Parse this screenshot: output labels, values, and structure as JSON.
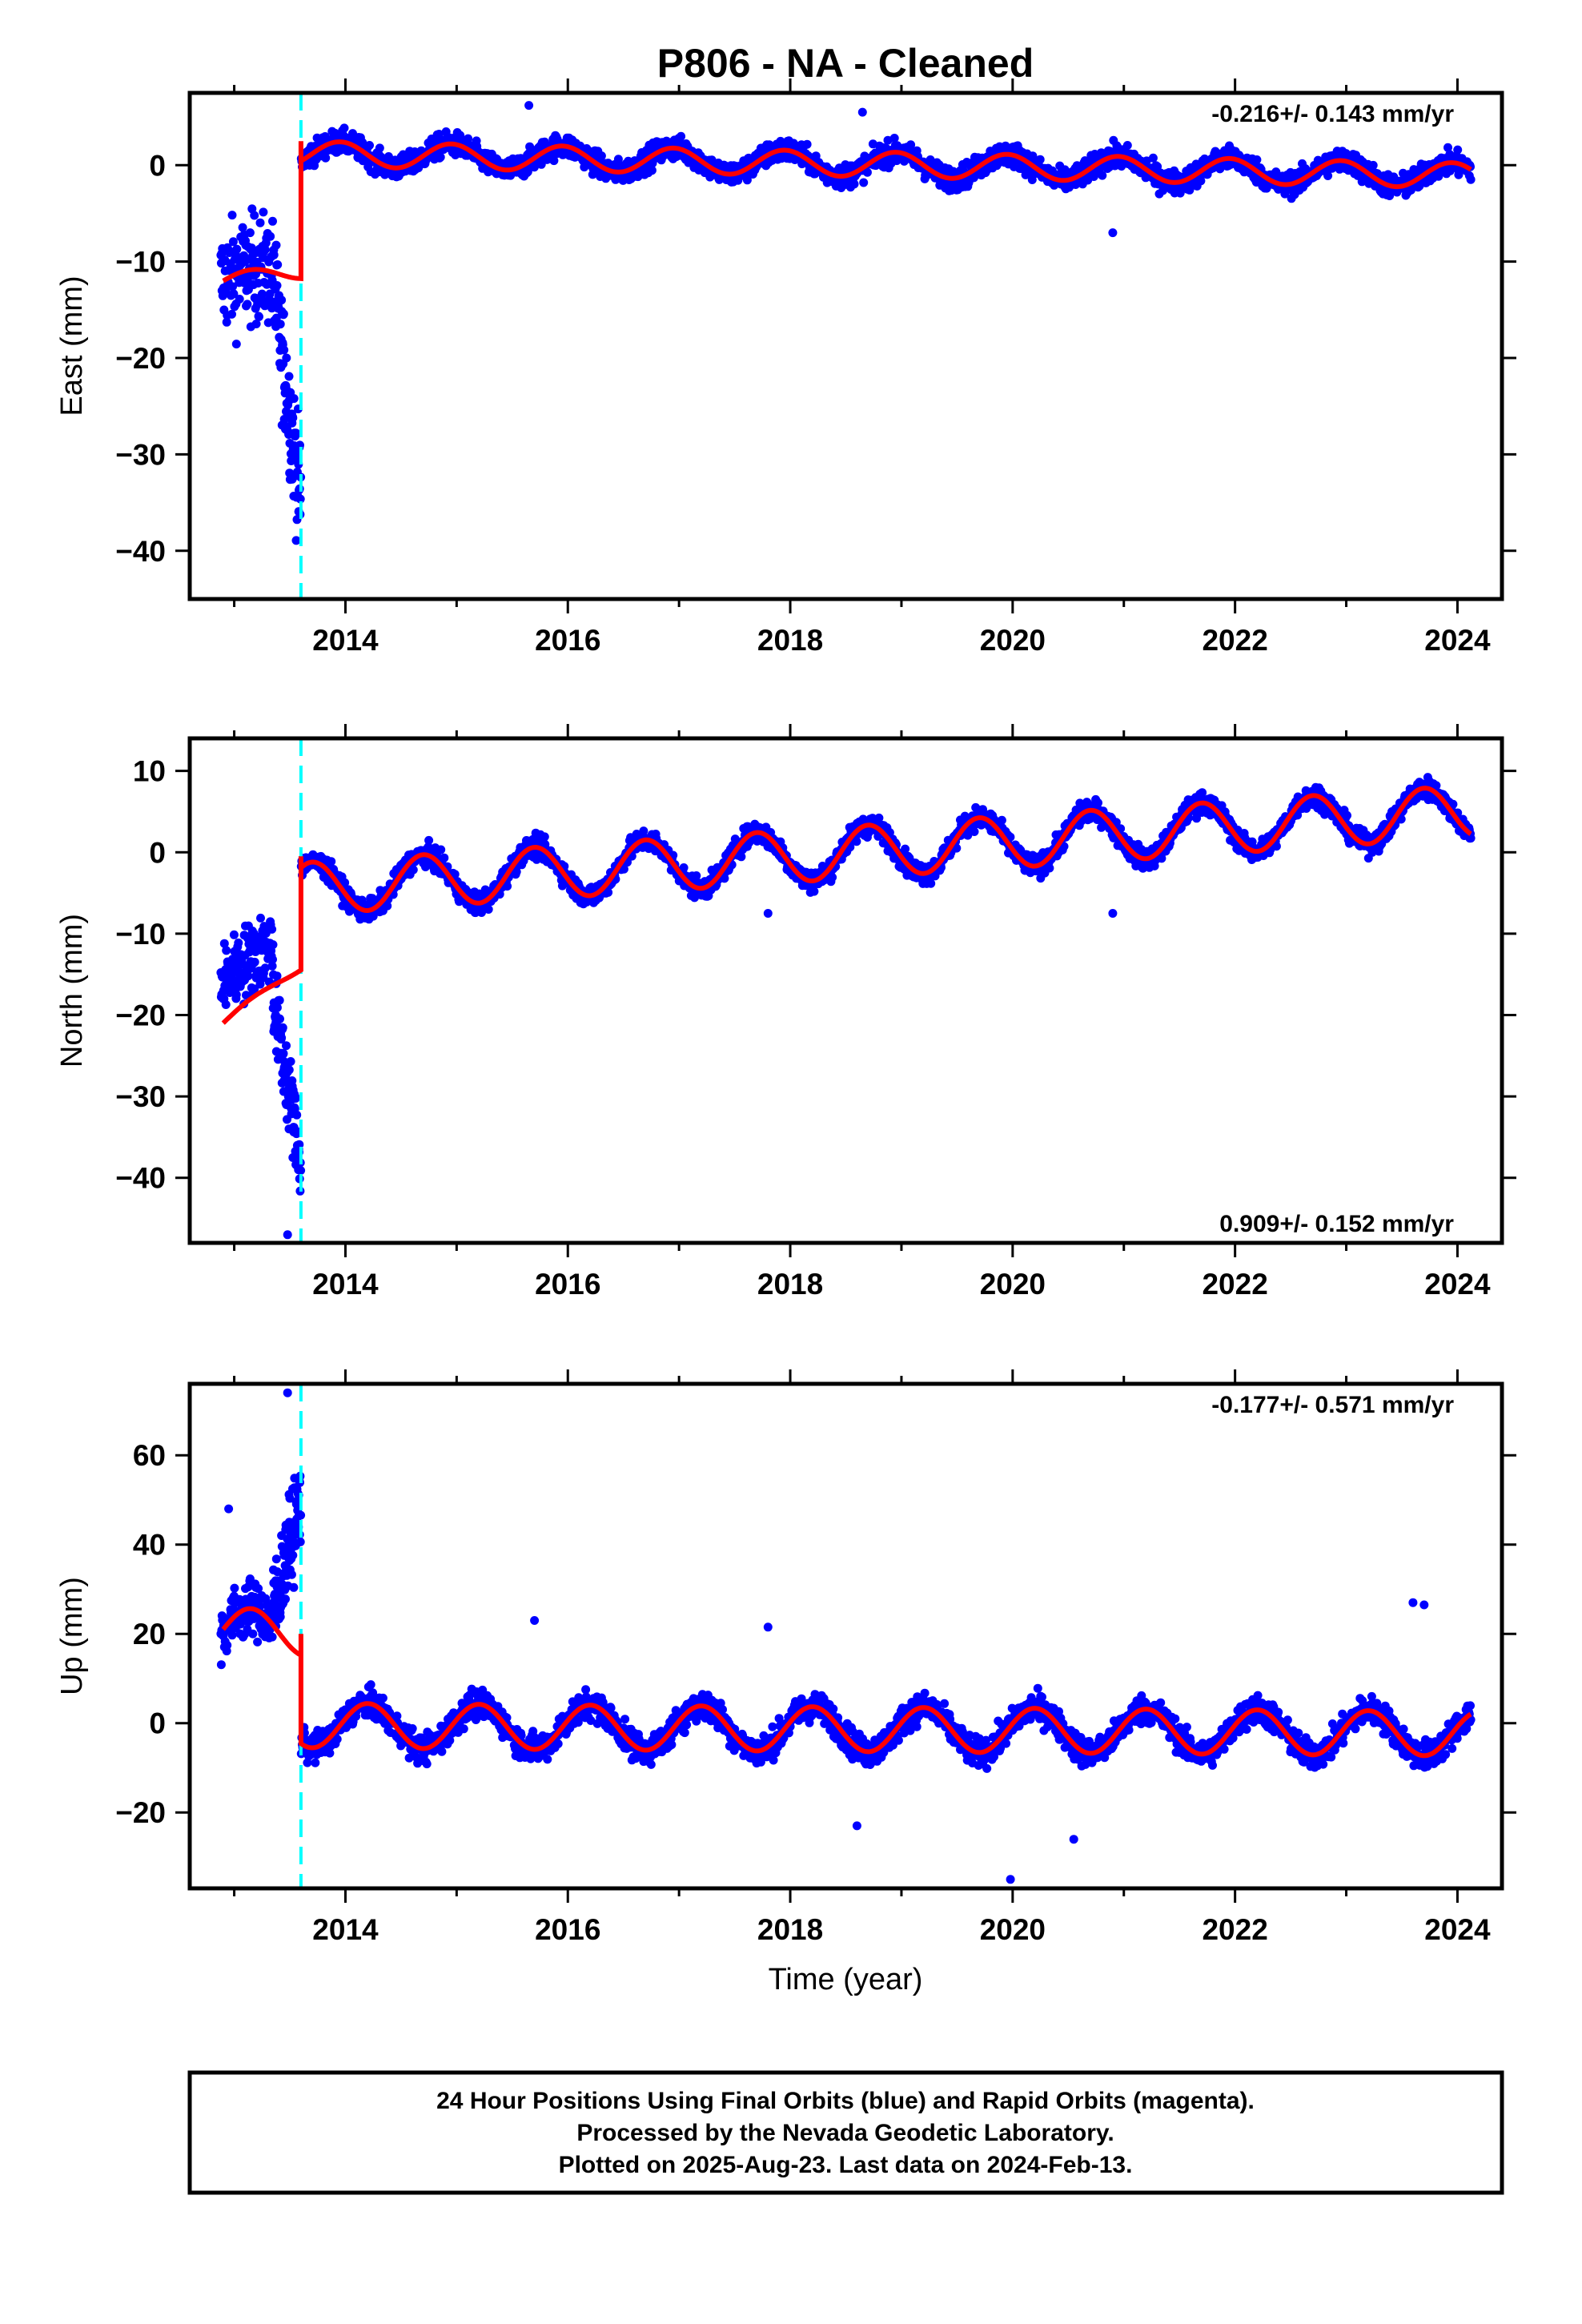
{
  "page": {
    "title": "P806  - NA - Cleaned",
    "xlabel": "Time (year)",
    "footer": [
      "24 Hour Positions Using Final Orbits (blue) and Rapid Orbits (magenta).",
      "Processed by the Nevada Geodetic Laboratory.",
      "Plotted on 2025-Aug-23. Last data on 2024-Feb-13."
    ]
  },
  "colors": {
    "points": "#0000ff",
    "model": "#ff0000",
    "offset_line": "#00ffff",
    "frame": "#000000"
  },
  "chart_data": [
    {
      "type": "scatter",
      "component": "east",
      "ylabel": "East (mm)",
      "rate_text": "-0.216+/- 0.143 mm/yr",
      "rate_position": "top-right",
      "xlim": [
        2012.6,
        2024.4
      ],
      "ylim": [
        -45,
        7.5
      ],
      "xticks": [
        2014,
        2016,
        2018,
        2020,
        2022,
        2024
      ],
      "yticks": [
        0,
        -10,
        -20,
        -30,
        -40
      ],
      "offset_epoch": 2013.6,
      "model": {
        "pre": {
          "start": 2012.9,
          "end": 2013.6,
          "value_start": -12.0,
          "value_end": -11.0,
          "annual_amplitude": 0.8
        },
        "post": {
          "start": 2013.6,
          "end": 2024.12,
          "value_start": 1.2,
          "trend": -0.216,
          "annual_amplitude": 1.3,
          "phase": 0.3
        },
        "step_top": 2.5
      },
      "points": {
        "pre": {
          "start": 2012.88,
          "end": 2013.35,
          "spread": 5.5,
          "offset": 0
        },
        "outlier_tail": {
          "start": 2013.35,
          "end": 2013.6,
          "from": -12,
          "to": -35,
          "spread": 6
        },
        "post": {
          "spread": 1.2
        },
        "outliers": [
          [
            2020.9,
            -7
          ],
          [
            2015.65,
            6.2
          ],
          [
            2018.65,
            5.5
          ]
        ]
      }
    },
    {
      "type": "scatter",
      "component": "north",
      "ylabel": "North (mm)",
      "rate_text": "0.909+/- 0.152 mm/yr",
      "rate_position": "bottom-right",
      "xlim": [
        2012.6,
        2024.4
      ],
      "ylim": [
        -48,
        14
      ],
      "xticks": [
        2014,
        2016,
        2018,
        2020,
        2022,
        2024
      ],
      "yticks": [
        10,
        0,
        -10,
        -20,
        -30,
        -40
      ],
      "offset_epoch": 2013.6,
      "model": {
        "pre": {
          "start": 2012.9,
          "end": 2013.6,
          "value_start": -21.0,
          "value_end": -14.0,
          "annual_amplitude": 0.5
        },
        "post": {
          "start": 2013.6,
          "end": 2024.12,
          "value_start": -4.5,
          "trend": 0.909,
          "annual_amplitude": 3.2,
          "phase": 0.55
        },
        "step_top": -0.5
      },
      "points": {
        "pre": {
          "start": 2012.88,
          "end": 2013.35,
          "spread": 4.5,
          "offset": 5
        },
        "outlier_tail": {
          "start": 2013.35,
          "end": 2013.6,
          "from": -18,
          "to": -38,
          "spread": 5
        },
        "post": {
          "spread": 1.3
        },
        "outliers": [
          [
            2020.9,
            -7.5
          ],
          [
            2017.8,
            -7.5
          ],
          [
            2013.48,
            -47
          ]
        ]
      }
    },
    {
      "type": "scatter",
      "component": "up",
      "ylabel": "Up (mm)",
      "rate_text": "-0.177+/- 0.571 mm/yr",
      "rate_position": "top-right",
      "xlim": [
        2012.6,
        2024.4
      ],
      "ylim": [
        -37,
        76
      ],
      "xticks": [
        2014,
        2016,
        2018,
        2020,
        2022,
        2024
      ],
      "yticks": [
        60,
        40,
        20,
        0,
        -20
      ],
      "offset_epoch": 2013.6,
      "model": {
        "pre": {
          "start": 2012.9,
          "end": 2013.6,
          "value_start": 21.0,
          "value_end": 20.0,
          "annual_amplitude": 5.0
        },
        "post": {
          "start": 2013.6,
          "end": 2024.12,
          "value_start": -0.5,
          "trend": -0.177,
          "annual_amplitude": 5.0,
          "phase": 0.05
        },
        "step_top": 20
      },
      "points": {
        "pre": {
          "start": 2012.88,
          "end": 2013.35,
          "spread": 6,
          "offset": 0
        },
        "outlier_tail": {
          "start": 2013.35,
          "end": 2013.6,
          "from": 25,
          "to": 50,
          "spread": 10
        },
        "post": {
          "spread": 3.2
        },
        "outliers": [
          [
            2013.48,
            74
          ],
          [
            2019.98,
            -35
          ],
          [
            2018.6,
            -23
          ],
          [
            2020.55,
            -26
          ],
          [
            2023.6,
            27
          ],
          [
            2023.7,
            26.5
          ],
          [
            2017.8,
            21.5
          ],
          [
            2015.7,
            23
          ],
          [
            2012.95,
            48
          ]
        ]
      }
    }
  ]
}
